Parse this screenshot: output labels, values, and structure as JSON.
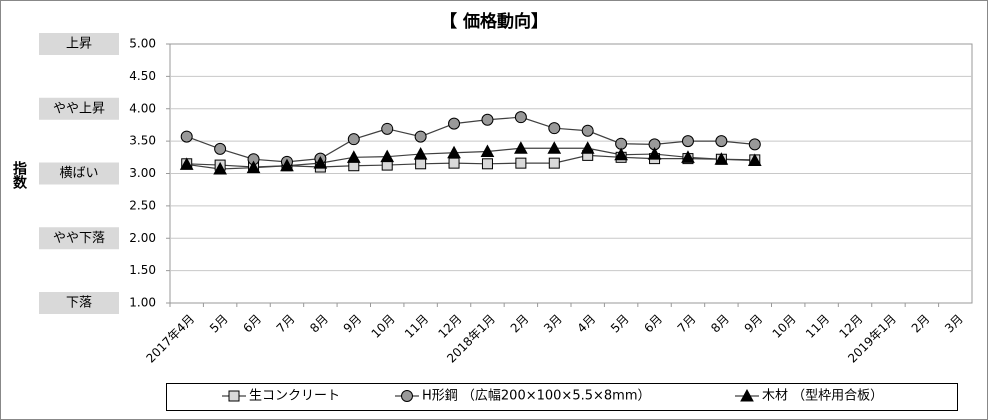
{
  "chart_data": {
    "type": "line",
    "title": "【 価格動向】",
    "y_label": "指数",
    "categories": [
      "2017年4月",
      "5月",
      "6月",
      "7月",
      "8月",
      "9月",
      "10月",
      "11月",
      "12月",
      "2018年1月",
      "2月",
      "3月",
      "4月",
      "5月",
      "6月",
      "7月",
      "8月",
      "9月",
      "10月",
      "11月",
      "12月",
      "2019年1月",
      "2月",
      "3月"
    ],
    "series": [
      {
        "name": "生コンクリート",
        "color": "#404040",
        "marker": "square",
        "marker_color": "#d9d9d9",
        "values": [
          3.15,
          3.13,
          3.1,
          3.12,
          3.1,
          3.12,
          3.13,
          3.15,
          3.16,
          3.15,
          3.16,
          3.16,
          3.28,
          3.25,
          3.23,
          3.23,
          3.22,
          3.21,
          null,
          null,
          null,
          null,
          null,
          null
        ]
      },
      {
        "name": "H形鋼 （広幅200×100×5.5×8mm）",
        "color": "#404040",
        "marker": "circle",
        "marker_color": "#999999",
        "values": [
          3.57,
          3.38,
          3.22,
          3.18,
          3.23,
          3.53,
          3.69,
          3.57,
          3.77,
          3.83,
          3.87,
          3.7,
          3.66,
          3.46,
          3.45,
          3.5,
          3.5,
          3.45,
          null,
          null,
          null,
          null,
          null,
          null
        ]
      },
      {
        "name": "木材 （型枠用合板）",
        "color": "#404040",
        "marker": "triangle",
        "marker_color": "#000000",
        "values": [
          3.14,
          3.07,
          3.09,
          3.12,
          3.16,
          3.25,
          3.26,
          3.3,
          3.32,
          3.34,
          3.39,
          3.39,
          3.39,
          3.29,
          3.3,
          3.25,
          3.22,
          3.2,
          null,
          null,
          null,
          null,
          null,
          null
        ]
      }
    ],
    "ylim": [
      1,
      5
    ],
    "yticks": [
      {
        "value": 1,
        "label": "1.00"
      },
      {
        "value": 1.5,
        "label": "1.50"
      },
      {
        "value": 2,
        "label": "2.00"
      },
      {
        "value": 2.5,
        "label": "2.50"
      },
      {
        "value": 3,
        "label": "3.00"
      },
      {
        "value": 3.5,
        "label": "3.50"
      },
      {
        "value": 4,
        "label": "4.00"
      },
      {
        "value": 4.5,
        "label": "4.50"
      },
      {
        "value": 5,
        "label": "5.00"
      }
    ],
    "level_labels": [
      {
        "value": 5,
        "label": "上昇"
      },
      {
        "value": 4,
        "label": "やや上昇"
      },
      {
        "value": 3,
        "label": "横ばい"
      },
      {
        "value": 2,
        "label": "やや下落"
      },
      {
        "value": 1,
        "label": "下落"
      }
    ],
    "grid": true,
    "legend": "bottom"
  }
}
